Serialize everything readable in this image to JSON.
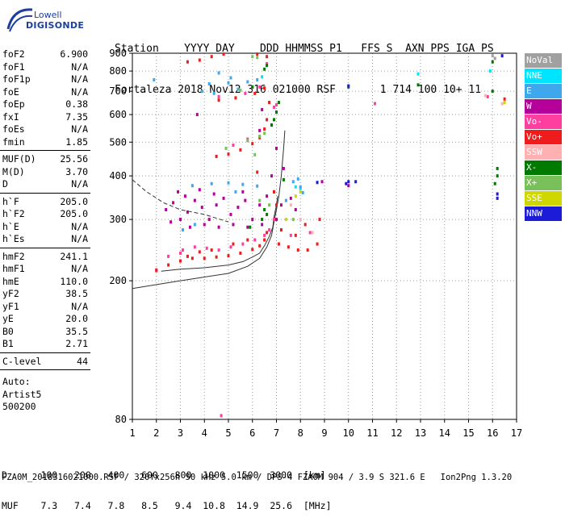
{
  "logo": {
    "line1": "Lowell",
    "line2": "DIGISONDE"
  },
  "header": {
    "labels": [
      "Station",
      "YYYY",
      "DAY",
      "DDD",
      "HHMMSS",
      "P1",
      "FFS",
      "S",
      "AXN",
      "PPS",
      "IGA",
      "PS"
    ],
    "values": [
      "Fortaleza",
      "2018",
      "Nov12",
      "316",
      "021000",
      "RSF",
      "",
      "1",
      "714",
      "100",
      "10+",
      "11"
    ]
  },
  "params": {
    "group1": [
      {
        "k": "foF2",
        "v": "6.900"
      },
      {
        "k": "foF1",
        "v": "N/A"
      },
      {
        "k": "foF1p",
        "v": "N/A"
      },
      {
        "k": "foE",
        "v": "N/A"
      },
      {
        "k": "foEp",
        "v": "0.38"
      },
      {
        "k": "fxI",
        "v": "7.35"
      },
      {
        "k": "foEs",
        "v": "N/A"
      },
      {
        "k": "fmin",
        "v": "1.85"
      }
    ],
    "group2": [
      {
        "k": "MUF(D)",
        "v": "25.56"
      },
      {
        "k": "M(D)",
        "v": "3.70"
      },
      {
        "k": "D",
        "v": "N/A"
      }
    ],
    "group3": [
      {
        "k": "h`F",
        "v": "205.0"
      },
      {
        "k": "h`F2",
        "v": "205.0"
      },
      {
        "k": "h`E",
        "v": "N/A"
      },
      {
        "k": "h`Es",
        "v": "N/A"
      }
    ],
    "group4": [
      {
        "k": "hmF2",
        "v": "241.1"
      },
      {
        "k": "hmF1",
        "v": "N/A"
      },
      {
        "k": "hmE",
        "v": "110.0"
      },
      {
        "k": "yF2",
        "v": "38.5"
      },
      {
        "k": "yF1",
        "v": "N/A"
      },
      {
        "k": "yE",
        "v": "20.0"
      },
      {
        "k": "B0",
        "v": "35.5"
      },
      {
        "k": "B1",
        "v": "2.71"
      }
    ],
    "clevel": {
      "k": "C-level",
      "v": "44"
    },
    "auto": [
      "Auto:",
      "Artist5",
      "500200"
    ]
  },
  "legend": [
    {
      "label": "NoVal",
      "bg": "#a0a0a0",
      "fg": "#ffffff"
    },
    {
      "label": "NNE",
      "bg": "#00e5ff",
      "fg": "#ffffff"
    },
    {
      "label": "E",
      "bg": "#3fa8ec",
      "fg": "#ffffff"
    },
    {
      "label": "W",
      "bg": "#b5009a",
      "fg": "#ffffff"
    },
    {
      "label": "Vo-",
      "bg": "#ff3fa0",
      "fg": "#ffffff"
    },
    {
      "label": "Vo+",
      "bg": "#ee1c1c",
      "fg": "#ffffff"
    },
    {
      "label": "SSW",
      "bg": "#ffb0b0",
      "fg": "#ffffff"
    },
    {
      "label": "X-",
      "bg": "#007a00",
      "fg": "#ffffff"
    },
    {
      "label": "X+",
      "bg": "#7ac05a",
      "fg": "#ffffff"
    },
    {
      "label": "SSE",
      "bg": "#cfd600",
      "fg": "#ffffff"
    },
    {
      "label": "NNW",
      "bg": "#1b1bd8",
      "fg": "#ffffff"
    }
  ],
  "chart_data": {
    "type": "scatter",
    "title": "",
    "xlabel": "",
    "ylabel": "",
    "xlim": [
      1,
      17
    ],
    "ylim": [
      80,
      900
    ],
    "y_scale": "log",
    "x_ticks": [
      1,
      2,
      3,
      4,
      5,
      6,
      7,
      8,
      9,
      10,
      11,
      12,
      13,
      14,
      15,
      16,
      17
    ],
    "y_ticks": [
      80,
      200,
      300,
      400,
      500,
      600,
      700,
      800,
      900
    ],
    "grid": true,
    "legend_position": "right",
    "series": [
      {
        "name": "NoVal",
        "color": "#a0a0a0",
        "points": [
          [
            16.0,
            885
          ],
          [
            16.1,
            870
          ]
        ]
      },
      {
        "name": "NNE",
        "color": "#00e5ff",
        "points": [
          [
            12.9,
            785
          ],
          [
            15.9,
            800
          ],
          [
            6.4,
            770
          ],
          [
            7.8,
            372
          ],
          [
            8.0,
            368
          ]
        ]
      },
      {
        "name": "E",
        "color": "#3fa8ec",
        "points": [
          [
            1.9,
            755
          ],
          [
            3.9,
            700
          ],
          [
            4.2,
            735
          ],
          [
            4.6,
            790
          ],
          [
            5.0,
            740
          ],
          [
            5.4,
            710
          ],
          [
            5.8,
            745
          ],
          [
            6.0,
            720
          ],
          [
            4.4,
            690
          ],
          [
            5.1,
            765
          ],
          [
            6.2,
            755
          ],
          [
            3.5,
            375
          ],
          [
            4.3,
            380
          ],
          [
            5.0,
            382
          ],
          [
            5.6,
            378
          ],
          [
            6.2,
            374
          ],
          [
            7.7,
            385
          ],
          [
            8.0,
            372
          ],
          [
            8.1,
            358
          ],
          [
            7.9,
            392
          ],
          [
            3.6,
            290
          ],
          [
            3.1,
            280
          ],
          [
            7.4,
            340
          ],
          [
            5.3,
            360
          ]
        ]
      },
      {
        "name": "W",
        "color": "#b5009a",
        "points": [
          [
            2.4,
            320
          ],
          [
            2.7,
            335
          ],
          [
            3.0,
            300
          ],
          [
            3.3,
            315
          ],
          [
            3.6,
            340
          ],
          [
            3.9,
            325
          ],
          [
            4.2,
            300
          ],
          [
            4.5,
            330
          ],
          [
            4.8,
            345
          ],
          [
            5.1,
            310
          ],
          [
            5.4,
            325
          ],
          [
            5.7,
            340
          ],
          [
            6.0,
            300
          ],
          [
            6.3,
            330
          ],
          [
            6.6,
            350
          ],
          [
            6.9,
            360
          ],
          [
            7.2,
            330
          ],
          [
            7.6,
            345
          ],
          [
            2.6,
            295
          ],
          [
            3.4,
            285
          ],
          [
            4.0,
            290
          ],
          [
            4.6,
            285
          ],
          [
            5.2,
            290
          ],
          [
            5.8,
            285
          ],
          [
            6.4,
            290
          ],
          [
            7.0,
            300
          ],
          [
            3.2,
            350
          ],
          [
            4.4,
            355
          ],
          [
            5.6,
            360
          ],
          [
            6.8,
            400
          ],
          [
            7.3,
            420
          ],
          [
            7.0,
            480
          ],
          [
            6.3,
            540
          ],
          [
            6.4,
            620
          ],
          [
            3.8,
            365
          ],
          [
            2.9,
            360
          ],
          [
            10.0,
            375
          ],
          [
            8.9,
            385
          ],
          [
            7.8,
            320
          ],
          [
            3.7,
            600
          ]
        ]
      },
      {
        "name": "Vo-",
        "color": "#ff3fa0",
        "points": [
          [
            3.1,
            245
          ],
          [
            3.6,
            250
          ],
          [
            4.1,
            248
          ],
          [
            4.6,
            245
          ],
          [
            5.1,
            250
          ],
          [
            5.6,
            255
          ],
          [
            6.1,
            262
          ],
          [
            6.5,
            270
          ],
          [
            6.7,
            280
          ],
          [
            6.9,
            300
          ],
          [
            2.0,
            215
          ],
          [
            2.5,
            235
          ],
          [
            3.0,
            240
          ],
          [
            6.8,
            560
          ],
          [
            6.9,
            630
          ],
          [
            7.0,
            640
          ],
          [
            5.2,
            490
          ],
          [
            5.8,
            510
          ],
          [
            4.6,
            675
          ],
          [
            5.7,
            690
          ],
          [
            6.3,
            720
          ],
          [
            6.6,
            840
          ],
          [
            11.1,
            645
          ],
          [
            15.8,
            675
          ],
          [
            8.4,
            275
          ],
          [
            7.6,
            270
          ],
          [
            4.7,
            82
          ]
        ]
      },
      {
        "name": "Vo+",
        "color": "#ee1c1c",
        "points": [
          [
            2.0,
            214
          ],
          [
            2.5,
            222
          ],
          [
            3.0,
            228
          ],
          [
            3.5,
            232
          ],
          [
            4.0,
            232
          ],
          [
            4.5,
            234
          ],
          [
            5.0,
            236
          ],
          [
            5.5,
            240
          ],
          [
            6.0,
            246
          ],
          [
            6.3,
            252
          ],
          [
            6.5,
            262
          ],
          [
            6.6,
            275
          ],
          [
            4.5,
            455
          ],
          [
            5.0,
            462
          ],
          [
            5.5,
            475
          ],
          [
            6.0,
            495
          ],
          [
            6.3,
            515
          ],
          [
            6.5,
            545
          ],
          [
            6.6,
            580
          ],
          [
            6.7,
            650
          ],
          [
            3.3,
            235
          ],
          [
            3.8,
            242
          ],
          [
            4.3,
            245
          ],
          [
            5.2,
            255
          ],
          [
            5.8,
            262
          ],
          [
            7.1,
            255
          ],
          [
            7.5,
            250
          ],
          [
            7.9,
            245
          ],
          [
            8.3,
            245
          ],
          [
            8.7,
            255
          ],
          [
            8.2,
            290
          ],
          [
            7.2,
            280
          ],
          [
            7.8,
            270
          ],
          [
            4.6,
            660
          ],
          [
            5.3,
            670
          ],
          [
            6.1,
            690
          ],
          [
            6.5,
            715
          ],
          [
            3.8,
            860
          ],
          [
            4.3,
            880
          ],
          [
            4.8,
            895
          ],
          [
            3.3,
            850
          ],
          [
            6.2,
            895
          ],
          [
            6.6,
            880
          ],
          [
            16.5,
            665
          ],
          [
            6.9,
            360
          ],
          [
            7.0,
            330
          ],
          [
            8.8,
            300
          ],
          [
            6.2,
            410
          ]
        ]
      },
      {
        "name": "SSW",
        "color": "#ffb0b0",
        "points": [
          [
            15.7,
            680
          ],
          [
            16.4,
            645
          ],
          [
            7.6,
            330
          ],
          [
            8.5,
            275
          ],
          [
            8.0,
            300
          ]
        ]
      },
      {
        "name": "X-",
        "color": "#007a00",
        "points": [
          [
            6.8,
            560
          ],
          [
            6.9,
            580
          ],
          [
            7.0,
            610
          ],
          [
            7.1,
            650
          ],
          [
            6.0,
            720
          ],
          [
            6.5,
            810
          ],
          [
            6.6,
            830
          ],
          [
            10.0,
            720
          ],
          [
            12.9,
            730
          ],
          [
            16.0,
            850
          ],
          [
            16.0,
            700
          ],
          [
            16.2,
            420
          ],
          [
            16.1,
            380
          ],
          [
            16.2,
            400
          ],
          [
            6.4,
            300
          ],
          [
            6.6,
            310
          ],
          [
            6.5,
            320
          ],
          [
            5.9,
            285
          ],
          [
            7.3,
            390
          ]
        ]
      },
      {
        "name": "X+",
        "color": "#7ac05a",
        "points": [
          [
            6.3,
            520
          ],
          [
            5.8,
            505
          ],
          [
            6.5,
            530
          ],
          [
            6.1,
            460
          ],
          [
            5.5,
            705
          ],
          [
            6.2,
            875
          ],
          [
            6.0,
            880
          ],
          [
            6.3,
            340
          ],
          [
            6.7,
            330
          ],
          [
            7.7,
            300
          ],
          [
            4.9,
            480
          ]
        ]
      },
      {
        "name": "SSE",
        "color": "#cfd600",
        "points": [
          [
            8.0,
            360
          ],
          [
            7.8,
            350
          ],
          [
            16.5,
            650
          ],
          [
            7.4,
            300
          ]
        ]
      },
      {
        "name": "NNW",
        "color": "#1b1bd8",
        "points": [
          [
            16.4,
            885
          ],
          [
            16.2,
            355
          ],
          [
            16.2,
            345
          ],
          [
            10.0,
            725
          ],
          [
            10.0,
            385
          ],
          [
            10.3,
            385
          ],
          [
            9.9,
            380
          ],
          [
            8.7,
            383
          ]
        ]
      }
    ],
    "curves": [
      {
        "name": "profile-solid",
        "style": "solid",
        "points": [
          [
            1.0,
            190
          ],
          [
            2.0,
            195
          ],
          [
            3.0,
            200
          ],
          [
            4.0,
            205
          ],
          [
            5.0,
            210
          ],
          [
            5.8,
            220
          ],
          [
            6.3,
            232
          ],
          [
            6.6,
            250
          ],
          [
            6.8,
            270
          ],
          [
            6.9,
            295
          ],
          [
            7.0,
            320
          ],
          [
            7.1,
            350
          ],
          [
            7.2,
            400
          ],
          [
            7.3,
            480
          ],
          [
            7.35,
            540
          ]
        ]
      },
      {
        "name": "profile-dashed",
        "style": "dashed",
        "points": [
          [
            1.0,
            390
          ],
          [
            1.6,
            360
          ],
          [
            2.3,
            335
          ],
          [
            3.0,
            320
          ],
          [
            4.0,
            310
          ],
          [
            5.0,
            295
          ]
        ]
      },
      {
        "name": "trace-dark",
        "style": "solid",
        "points": [
          [
            2.2,
            213
          ],
          [
            3.0,
            216
          ],
          [
            4.0,
            218
          ],
          [
            5.0,
            222
          ],
          [
            5.6,
            227
          ],
          [
            6.0,
            234
          ],
          [
            6.3,
            240
          ],
          [
            6.5,
            252
          ],
          [
            6.7,
            268
          ],
          [
            6.85,
            285
          ],
          [
            6.9,
            305
          ],
          [
            7.0,
            330
          ],
          [
            7.05,
            350
          ]
        ]
      }
    ]
  },
  "footer": {
    "line1": "D      100   200   400   600   800  1000  1500  3000  [km]",
    "line2": "MUF    7.3   7.4   7.8   8.5   9.4  10.8  14.9  25.6  [MHz]",
    "file": "FZA0M_2018316021000.RSF / 320fx256h 50 kHz 5.0 km / DPS-4 FZA0M 904 / 3.9 S 321.6 E   Ion2Png 1.3.20"
  }
}
